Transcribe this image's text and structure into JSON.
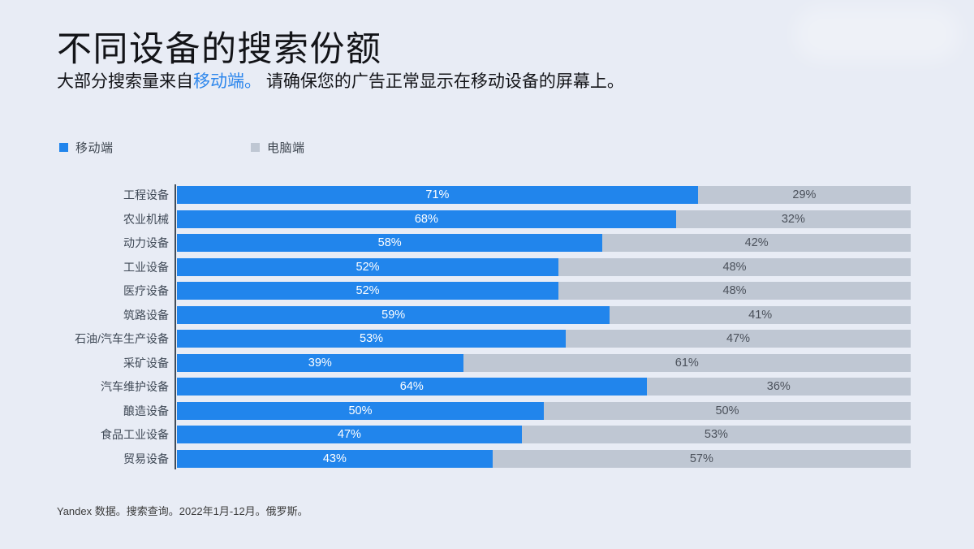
{
  "slide": {
    "title": "不同设备的搜索份额",
    "subtitle": {
      "prefix": "大部分搜索量来自",
      "highlight": "移动端。",
      "suffix": " 请确保您的广告正常显示在移动设备的屏幕上。"
    },
    "footer": "Yandex 数据。搜索查询。2022年1月-12月。俄罗斯。"
  },
  "legend": [
    {
      "label": "移动端",
      "color": "#2185ec"
    },
    {
      "label": "电脑端",
      "color": "#bfc7d3"
    }
  ],
  "chart_data": {
    "type": "bar",
    "subtype": "horizontal-stacked-100",
    "categories": [
      "工程设备",
      "农业机械",
      "动力设备",
      "工业设备",
      "医疗设备",
      "筑路设备",
      "石油/汽车生产设备",
      "采矿设备",
      "汽车维护设备",
      "酿造设备",
      "食品工业设备",
      "贸易设备"
    ],
    "series": [
      {
        "name": "移动端",
        "color": "#2185ec",
        "values": [
          71,
          68,
          58,
          52,
          52,
          59,
          53,
          39,
          64,
          50,
          47,
          43
        ]
      },
      {
        "name": "电脑端",
        "color": "#bfc7d3",
        "values": [
          29,
          32,
          42,
          48,
          48,
          41,
          47,
          61,
          36,
          50,
          53,
          57
        ]
      }
    ],
    "value_suffix": "%",
    "xlim": [
      0,
      100
    ],
    "grid": false,
    "legend_position": "top-left"
  }
}
